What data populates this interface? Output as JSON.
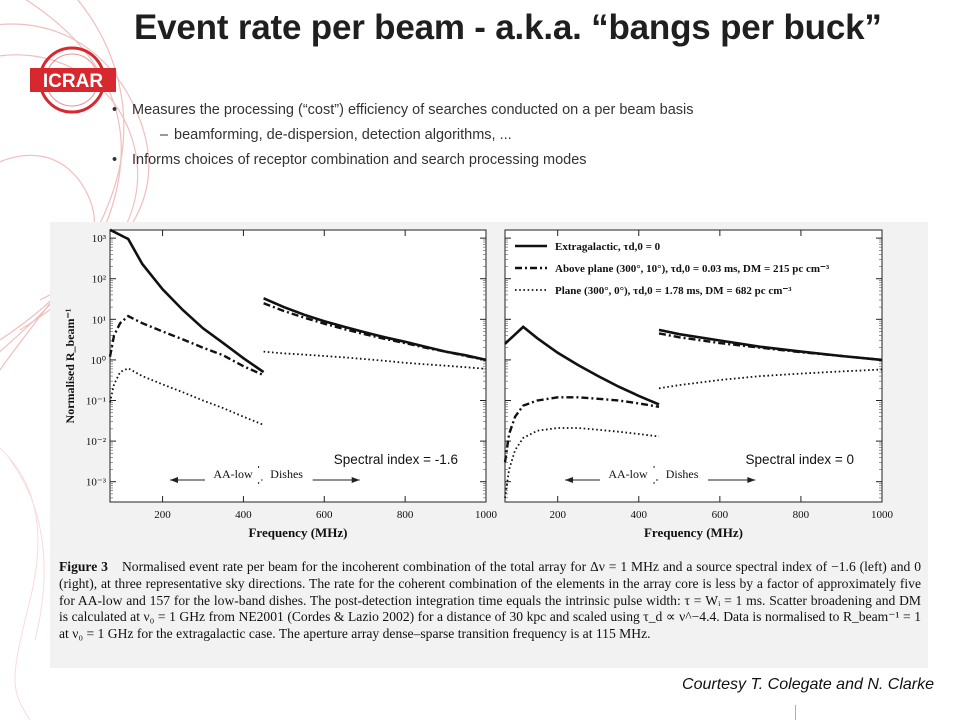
{
  "title": "Event rate per beam - a.k.a.  “bangs per buck”",
  "logo_text": "ICRAR",
  "bullets": [
    {
      "marker": "•",
      "text": "Measures the processing (“cost”) efficiency of searches conducted on a per beam basis"
    },
    {
      "marker": "–",
      "text": "beamforming, de-dispersion, detection algorithms, ..."
    },
    {
      "marker": "•",
      "text": "Informs choices of receptor combination and search processing modes"
    }
  ],
  "caption": {
    "fig_label": "Figure 3",
    "text": "Normalised event rate per beam for the incoherent combination of the total array for Δν = 1 MHz and a source spectral index of −1.6 (left) and 0 (right), at three representative sky directions. The rate for the coherent combination of the elements in the array core is less by a factor of approximately five for AA-low and 157 for the low-band dishes. The post-detection integration time equals the intrinsic pulse width: τ = Wᵢ = 1 ms. Scatter broadening and DM is calculated at ν₀ = 1 GHz from NE2001 (Cordes & Lazio 2002) for a distance of 30 kpc and scaled using τ_d ∝ ν^−4.4. Data is normalised to R_beam⁻¹ = 1 at ν₀ = 1 GHz for the extragalactic case. The aperture array dense–sparse transition frequency is at 115 MHz."
  },
  "courtesy": "Courtesy T. Colegate and N. Clarke",
  "colors": {
    "logo_red": "#d8282f",
    "line": "#111111",
    "figure_bg": "#f2f2f2"
  },
  "chart_data": [
    {
      "type": "line",
      "annotation": "Spectral index = -1.6",
      "xlabel": "Frequency (MHz)",
      "ylabel": "Normalised R_beam⁻¹",
      "xlim": [
        70,
        1000
      ],
      "ylim_log10": [
        -3.5,
        3.2
      ],
      "log_y": true,
      "xticks": [
        200,
        400,
        600,
        800,
        1000
      ],
      "yticks": [
        "10³",
        "10²",
        "10¹",
        "10⁰",
        "10⁻¹",
        "10⁻²",
        "10⁻³"
      ],
      "regions": [
        {
          "label": "AA-low",
          "from": 70,
          "to": 450
        },
        {
          "label": "Dishes",
          "from": 450,
          "to": 700
        }
      ],
      "series": [
        {
          "style": "solid",
          "segments": [
            {
              "x": [
                70,
                115,
                150,
                200,
                250,
                300,
                350,
                400,
                450
              ],
              "y": [
                1600,
                950,
                230,
                55,
                17,
                6,
                2.6,
                1.1,
                0.5
              ]
            },
            {
              "x": [
                450,
                500,
                550,
                600,
                650,
                700,
                750,
                800,
                850,
                900,
                950,
                1000
              ],
              "y": [
                33,
                20,
                13,
                9,
                6.5,
                4.8,
                3.6,
                2.8,
                2.1,
                1.6,
                1.3,
                1.0
              ]
            }
          ]
        },
        {
          "style": "dashdot",
          "segments": [
            {
              "x": [
                70,
                80,
                95,
                115,
                150,
                200,
                250,
                300,
                350,
                400,
                450
              ],
              "y": [
                1.2,
                4,
                8,
                12,
                8,
                5,
                3.2,
                2,
                1.3,
                0.7,
                0.42
              ]
            },
            {
              "x": [
                450,
                500,
                550,
                600,
                650,
                700,
                750,
                800,
                850,
                900,
                950,
                1000
              ],
              "y": [
                25,
                16,
                11,
                7.8,
                5.7,
                4.3,
                3.3,
                2.6,
                2.0,
                1.6,
                1.25,
                1.0
              ]
            }
          ]
        },
        {
          "style": "dotted",
          "segments": [
            {
              "x": [
                70,
                80,
                95,
                115,
                150,
                200,
                250,
                300,
                350,
                400,
                450
              ],
              "y": [
                0.09,
                0.25,
                0.5,
                0.62,
                0.4,
                0.25,
                0.16,
                0.1,
                0.065,
                0.04,
                0.025
              ]
            },
            {
              "x": [
                450,
                500,
                550,
                600,
                650,
                700,
                750,
                800,
                850,
                900,
                950,
                1000
              ],
              "y": [
                1.6,
                1.45,
                1.35,
                1.25,
                1.15,
                1.05,
                0.95,
                0.85,
                0.78,
                0.72,
                0.66,
                0.6
              ]
            }
          ]
        }
      ]
    },
    {
      "type": "line",
      "annotation": "Spectral index = 0",
      "xlabel": "Frequency (MHz)",
      "xlim": [
        70,
        1000
      ],
      "ylim_log10": [
        -3.5,
        3.2
      ],
      "log_y": true,
      "xticks": [
        200,
        400,
        600,
        800,
        1000
      ],
      "regions": [
        {
          "label": "AA-low",
          "from": 70,
          "to": 450
        },
        {
          "label": "Dishes",
          "from": 450,
          "to": 700
        }
      ],
      "legend": [
        {
          "style": "solid",
          "label": "Extragalactic, τd,0 = 0"
        },
        {
          "style": "dashdot",
          "label": "Above plane (300°, 10°), τd,0 = 0.03 ms, DM = 215 pc cm⁻³"
        },
        {
          "style": "dotted",
          "label": "Plane (300°, 0°), τd,0 = 1.78 ms, DM = 682 pc cm⁻³"
        }
      ],
      "series": [
        {
          "style": "solid",
          "segments": [
            {
              "x": [
                70,
                115,
                150,
                200,
                250,
                300,
                350,
                400,
                450
              ],
              "y": [
                2.5,
                6.5,
                3.4,
                1.5,
                0.75,
                0.4,
                0.22,
                0.13,
                0.08
              ]
            },
            {
              "x": [
                450,
                500,
                600,
                700,
                800,
                900,
                1000
              ],
              "y": [
                5.5,
                4.3,
                3.0,
                2.1,
                1.6,
                1.25,
                1.0
              ]
            }
          ]
        },
        {
          "style": "dashdot",
          "segments": [
            {
              "x": [
                70,
                80,
                95,
                115,
                150,
                200,
                250,
                300,
                350,
                400,
                450
              ],
              "y": [
                0.003,
                0.015,
                0.04,
                0.075,
                0.1,
                0.12,
                0.12,
                0.11,
                0.1,
                0.085,
                0.07
              ]
            },
            {
              "x": [
                450,
                500,
                600,
                700,
                800,
                900,
                1000
              ],
              "y": [
                4.5,
                3.6,
                2.6,
                2.0,
                1.55,
                1.25,
                1.0
              ]
            }
          ]
        },
        {
          "style": "dotted",
          "segments": [
            {
              "x": [
                70,
                80,
                95,
                115,
                150,
                200,
                250,
                300,
                350,
                400,
                450
              ],
              "y": [
                0.0004,
                0.002,
                0.006,
                0.012,
                0.018,
                0.021,
                0.021,
                0.019,
                0.017,
                0.015,
                0.013
              ]
            },
            {
              "x": [
                450,
                500,
                600,
                700,
                800,
                900,
                1000
              ],
              "y": [
                0.2,
                0.24,
                0.32,
                0.4,
                0.46,
                0.52,
                0.58
              ]
            }
          ]
        }
      ]
    }
  ]
}
